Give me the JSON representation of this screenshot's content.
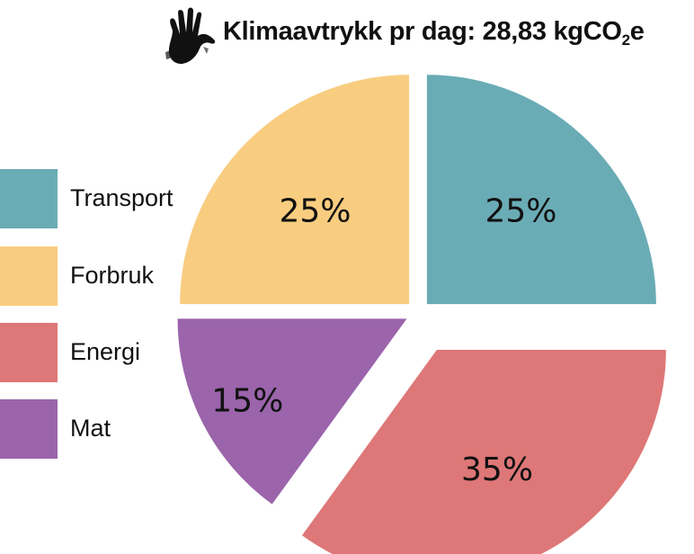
{
  "title": {
    "main": "Klimaavtrykk pr dag: 28,83 kgCO",
    "subscript": "2",
    "suffix": "e",
    "icon": "hand-icon"
  },
  "chart_data": {
    "type": "pie",
    "title": "Klimaavtrykk pr dag: 28,83 kgCO2e",
    "categories": [
      "Transport",
      "Energi",
      "Mat",
      "Forbruk"
    ],
    "values": [
      25,
      35,
      15,
      25
    ],
    "labels": [
      "25%",
      "35%",
      "15%",
      "25%"
    ],
    "colors": [
      "#6aacb5",
      "#de7777",
      "#9b64ab",
      "#f8cd80"
    ],
    "exploded": [
      false,
      true,
      false,
      false
    ],
    "legend_position": "left",
    "legend": [
      {
        "label": "Transport",
        "color": "#6aacb5"
      },
      {
        "label": "Forbruk",
        "color": "#f8cd80"
      },
      {
        "label": "Energi",
        "color": "#de7777"
      },
      {
        "label": "Mat",
        "color": "#9b64ab"
      }
    ]
  }
}
